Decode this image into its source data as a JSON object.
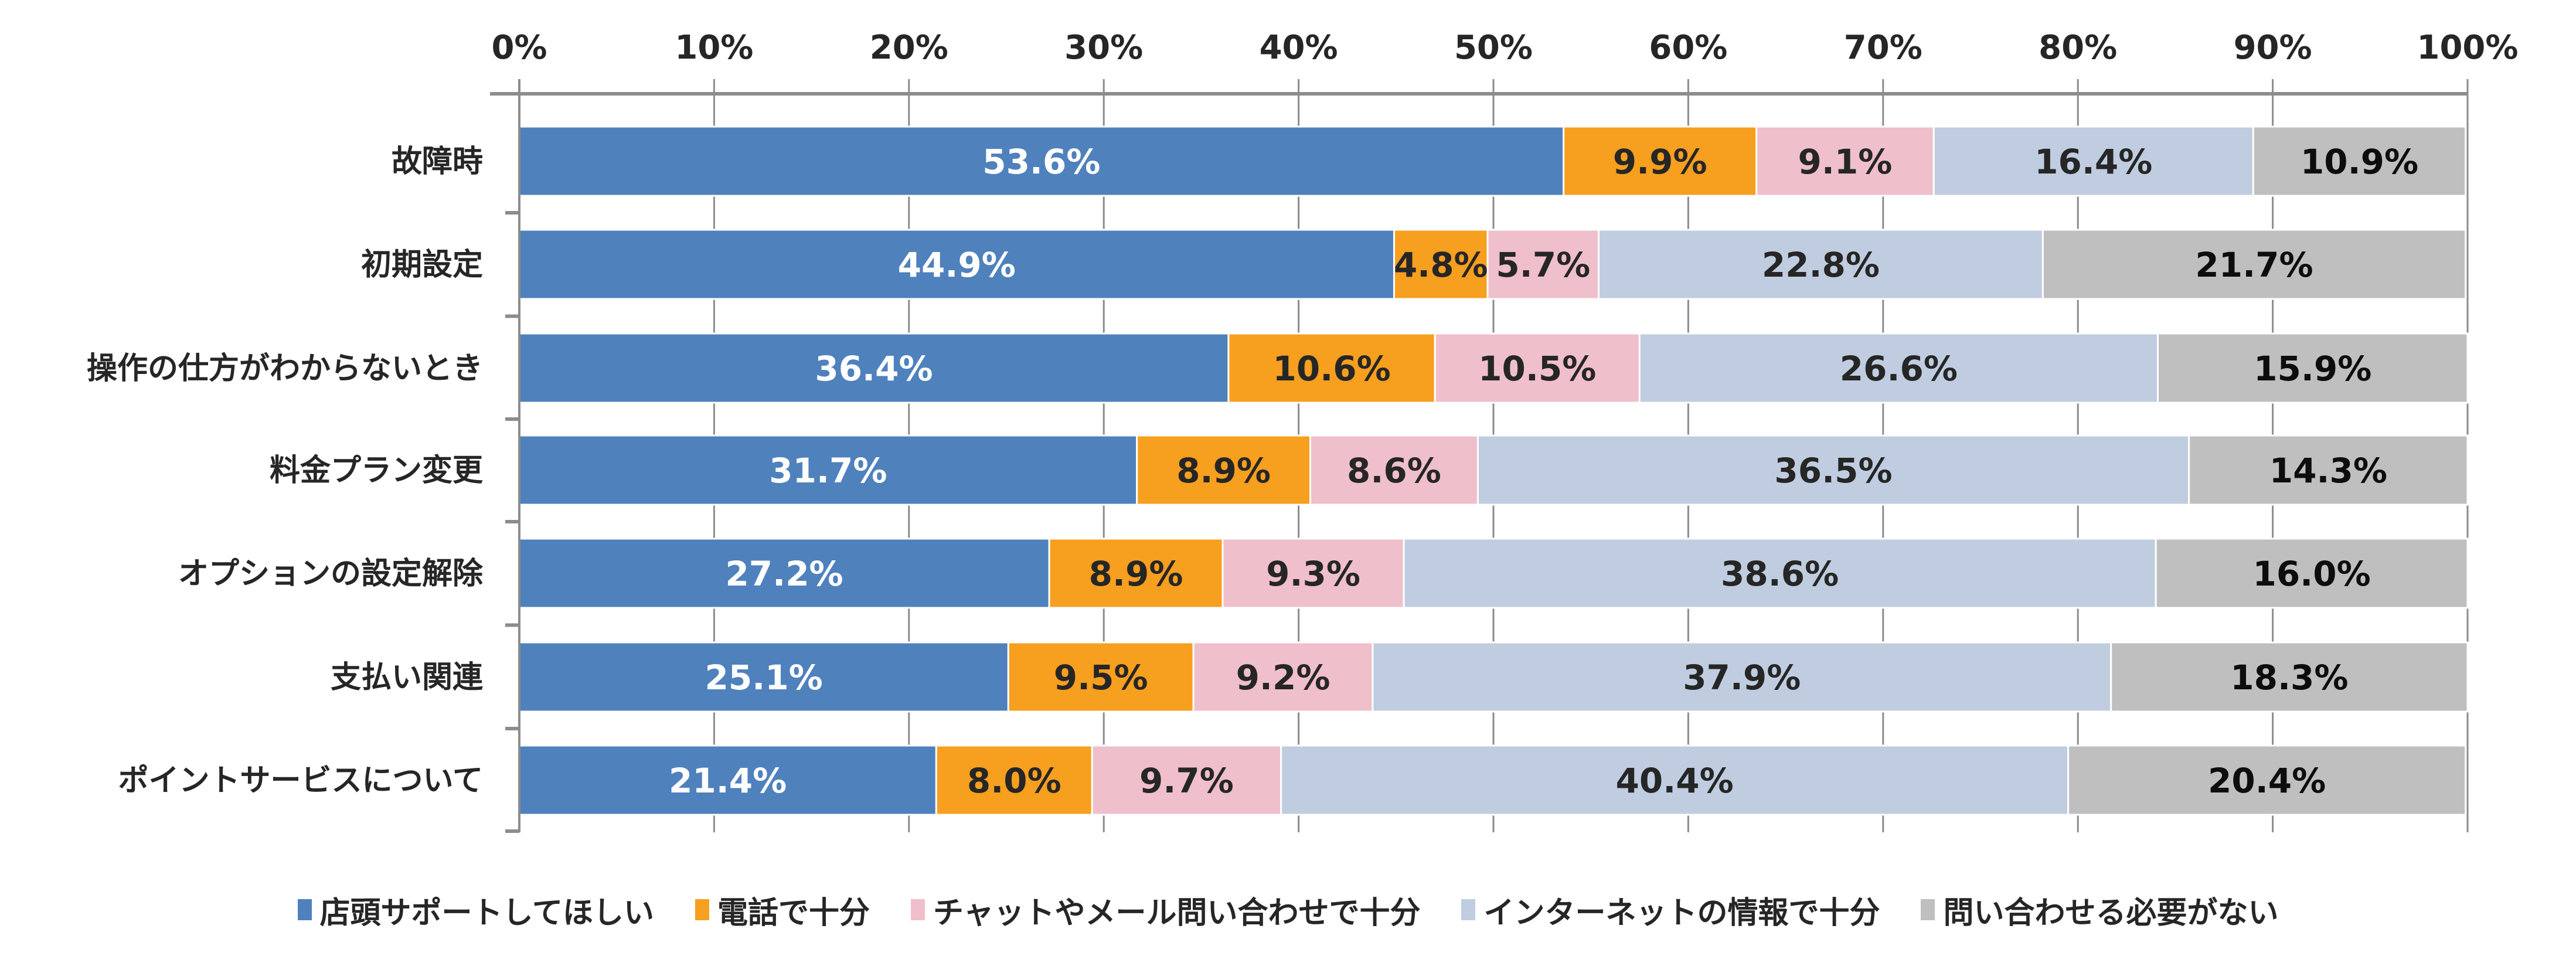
{
  "chart_data": {
    "type": "bar",
    "orientation": "horizontal",
    "stacked": "percent",
    "title": "",
    "xlabel": "",
    "ylabel": "",
    "xlim": [
      0,
      100
    ],
    "x_ticks": [
      "0%",
      "10%",
      "20%",
      "30%",
      "40%",
      "50%",
      "60%",
      "70%",
      "80%",
      "90%",
      "100%"
    ],
    "x_tick_values": [
      0,
      10,
      20,
      30,
      40,
      50,
      60,
      70,
      80,
      90,
      100
    ],
    "x_axis_position": "top",
    "grid": true,
    "legend_position": "bottom",
    "categories": [
      "故障時",
      "初期設定",
      "操作の仕方がわからないとき",
      "料金プラン変更",
      "オプションの設定解除",
      "支払い関連",
      "ポイントサービスについて"
    ],
    "series": [
      {
        "name": "店頭サポートしてほしい",
        "color": "#4F81BD",
        "label_color": "#ffffff",
        "values": [
          53.6,
          44.9,
          36.4,
          31.7,
          27.2,
          25.1,
          21.4
        ],
        "labels": [
          "53.6%",
          "44.9%",
          "36.4%",
          "31.7%",
          "27.2%",
          "25.1%",
          "21.4%"
        ]
      },
      {
        "name": "電話で十分",
        "color": "#F79F1F",
        "label_color": "#262626",
        "values": [
          9.9,
          4.8,
          10.6,
          8.9,
          8.9,
          9.5,
          8.0
        ],
        "labels": [
          "9.9%",
          "4.8%",
          "10.6%",
          "8.9%",
          "8.9%",
          "9.5%",
          "8.0%"
        ]
      },
      {
        "name": "チャットやメール問い合わせで十分",
        "color": "#EFBFCB",
        "label_color": "#262626",
        "values": [
          9.1,
          5.7,
          10.5,
          8.6,
          9.3,
          9.2,
          9.7
        ],
        "labels": [
          "9.1%",
          "5.7%",
          "10.5%",
          "8.6%",
          "9.3%",
          "9.2%",
          "9.7%"
        ]
      },
      {
        "name": "インターネットの情報で十分",
        "color": "#C0CDE0",
        "label_color": "#262626",
        "values": [
          16.4,
          22.8,
          26.6,
          36.5,
          38.6,
          37.9,
          40.4
        ],
        "labels": [
          "16.4%",
          "22.8%",
          "26.6%",
          "36.5%",
          "38.6%",
          "37.9%",
          "40.4%"
        ]
      },
      {
        "name": "問い合わせる必要がない",
        "color": "#BFBFBF",
        "label_color": "#0d0d0d",
        "values": [
          10.9,
          21.7,
          15.9,
          14.3,
          16.0,
          18.3,
          20.4
        ],
        "labels": [
          "10.9%",
          "21.7%",
          "15.9%",
          "14.3%",
          "16.0%",
          "18.3%",
          "20.4%"
        ]
      }
    ]
  }
}
